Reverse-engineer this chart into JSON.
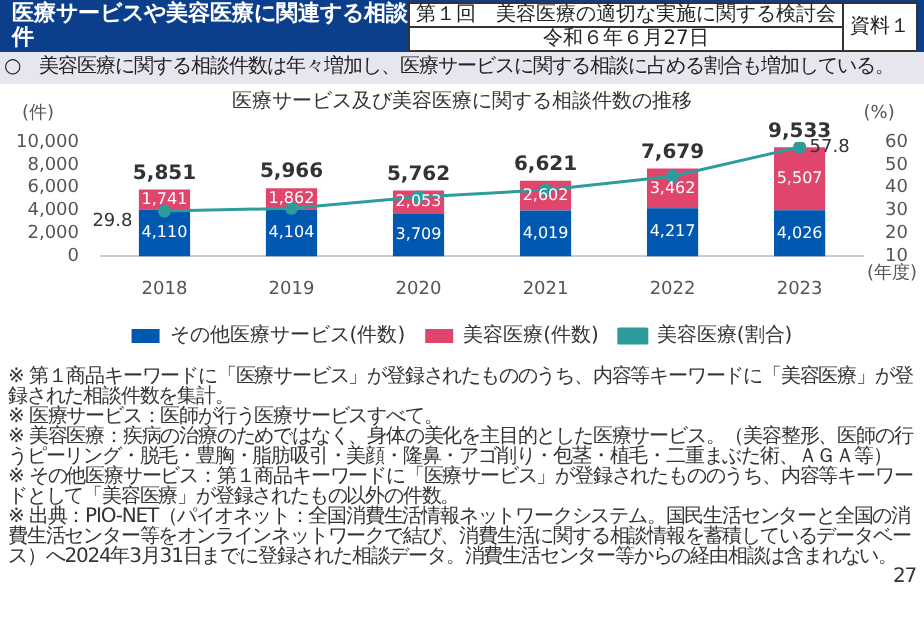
{
  "chart_data": {
    "type": "bar",
    "title": "医療サービス及び美容医療に関する相談件数の推移",
    "categories": [
      "2018",
      "2019",
      "2020",
      "2021",
      "2022",
      "2023"
    ],
    "series": [
      {
        "name": "その他医療サービス(件数)",
        "color": "#0058b0",
        "values": [
          4110,
          4104,
          3709,
          4019,
          4217,
          4026
        ],
        "value_labels": [
          "4,110",
          "4,104",
          "3,709",
          "4,019",
          "4,217",
          "4,026"
        ]
      },
      {
        "name": "美容医療(件数)",
        "color": "#e0456c",
        "values": [
          1741,
          1862,
          2053,
          2602,
          3462,
          5507
        ],
        "value_labels": [
          "1,741",
          "1,862",
          "2,053",
          "2,602",
          "3,462",
          "5,507"
        ]
      },
      {
        "name": "美容医療(割合)",
        "type": "line",
        "axis": "y2",
        "color": "#2e9c9c",
        "values": [
          29.8,
          31,
          36,
          39,
          45,
          57.8
        ],
        "value_labels": [
          "29.8",
          null,
          null,
          null,
          null,
          "57.8"
        ]
      }
    ],
    "stacked": true,
    "totals": [
      "5,851",
      "5,966",
      "5,762",
      "6,621",
      "7,679",
      "9,533"
    ],
    "ylabel": "(件)",
    "y2label": "(%)",
    "xlabel": "(年度)",
    "ylim": [
      0,
      10000
    ],
    "yticks": [
      0,
      {
        "value": 2000,
        "label": "2,000"
      },
      {
        "value": 4000,
        "label": "4,000"
      },
      {
        "value": 6000,
        "label": "6,000"
      },
      {
        "value": 8000,
        "label": "8,000"
      },
      {
        "value": 10000,
        "label": "10,000"
      }
    ],
    "y2lim": [
      10,
      60
    ],
    "y2ticks": [
      10,
      20,
      30,
      40,
      50,
      60
    ],
    "marker": "circle",
    "legend": "bottom",
    "grid": false,
    "annotations": [
      "医療サービスや美容医療に関連する相談件",
      "第１回　美容医療の適切な実施に関する検討会",
      "令和６年６月27日",
      "資料１",
      "○　美容医療に関する相談件数は年々増加し、医療サービスに関する相談に占める割合も増加している。",
      "※ 第１商品キーワードに「医療サービス」が登録されたもののうち、内容等キーワードに「美容医療」が登録された相談件数を集計。",
      "※ 医療サービス：医師が行う医療サービスすべて。",
      "※ 美容医療：疾病の治療のためではなく、身体の美化を主目的とした医療サービス。（美容整形、医師の行うピーリング・脱毛・豊胸・脂肪吸引・美顔・隆鼻・アゴ削り・包茎・植毛・二重まぶた術、ＡＧＡ等）",
      "※ その他医療サービス：第１商品キーワードに「医療サービス」が登録されたもののうち、内容等キーワードとして「美容医療」が登録されたもの以外の件数。",
      "※ 出典：PIO-NET（パイオネット：全国消費生活情報ネットワークシステム。国民生活センターと全国の消費生活センター等をオンラインネットワークで結び、消費生活に関する相談情報を蓄積しているデータベース）へ2024年3月31日までに登録された相談データ。消費生活センター等からの経由相談は含まれない。",
      "27"
    ]
  }
}
